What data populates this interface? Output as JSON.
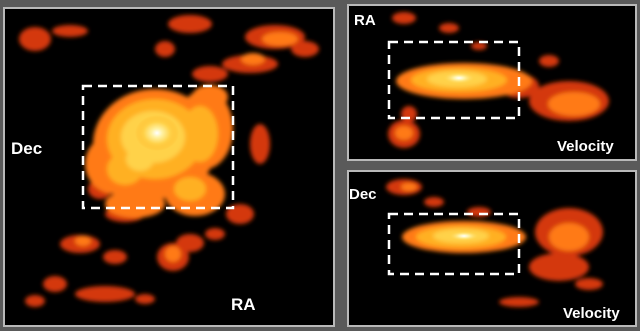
{
  "panels": {
    "left": {
      "label_dec": "Dec",
      "label_ra": "RA"
    },
    "top_right": {
      "label_ra": "RA",
      "label_velocity": "Velocity"
    },
    "bottom_right": {
      "label_dec": "Dec",
      "label_velocity": "Velocity"
    }
  },
  "colors": {
    "background": "#000000",
    "emission_outer": "#d4380a",
    "emission_mid": "#ff7a14",
    "emission_inner": "#ffd24a",
    "emission_core": "#fff8d0",
    "selection_box": "#ffffff"
  }
}
